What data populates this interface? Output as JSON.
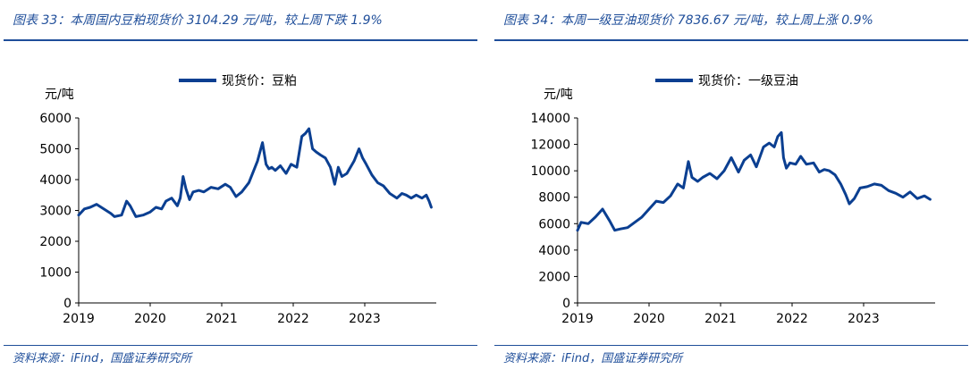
{
  "panels": [
    {
      "title": "图表 33：本周国内豆粕现货价 3104.29 元/吨，较上周下跌 1.9%",
      "source": "资料来源：iFind，国盛证券研究所",
      "chart_data": {
        "type": "line",
        "unit_label": "元/吨",
        "legend": "现货价：豆粕",
        "legend_position": "top-center",
        "grid": false,
        "xlim": [
          2019.0,
          2024.0
        ],
        "ylim": [
          0,
          6000
        ],
        "yticks": [
          0,
          1000,
          2000,
          3000,
          4000,
          5000,
          6000
        ],
        "xticks": [
          "2019",
          "2020",
          "2021",
          "2022",
          "2023"
        ],
        "color": "#0b3f91",
        "series": [
          {
            "name": "现货价：豆粕",
            "x": [
              2019.0,
              2019.08,
              2019.16,
              2019.25,
              2019.35,
              2019.45,
              2019.5,
              2019.6,
              2019.67,
              2019.72,
              2019.8,
              2019.9,
              2020.0,
              2020.08,
              2020.16,
              2020.22,
              2020.3,
              2020.38,
              2020.42,
              2020.46,
              2020.5,
              2020.55,
              2020.6,
              2020.68,
              2020.75,
              2020.85,
              2020.95,
              2021.05,
              2021.12,
              2021.2,
              2021.28,
              2021.38,
              2021.5,
              2021.57,
              2021.62,
              2021.66,
              2021.7,
              2021.75,
              2021.82,
              2021.9,
              2021.97,
              2022.05,
              2022.12,
              2022.17,
              2022.22,
              2022.27,
              2022.32,
              2022.38,
              2022.45,
              2022.52,
              2022.58,
              2022.63,
              2022.68,
              2022.75,
              2022.85,
              2022.92,
              2022.97,
              2023.02,
              2023.1,
              2023.18,
              2023.26,
              2023.35,
              2023.45,
              2023.52,
              2023.58,
              2023.65,
              2023.72,
              2023.8,
              2023.86,
              2023.9,
              2023.93
            ],
            "values": [
              2850,
              3050,
              3100,
              3200,
              3050,
              2900,
              2800,
              2850,
              3300,
              3150,
              2800,
              2850,
              2950,
              3100,
              3050,
              3300,
              3400,
              3150,
              3400,
              4100,
              3700,
              3350,
              3600,
              3650,
              3600,
              3750,
              3700,
              3850,
              3750,
              3450,
              3600,
              3900,
              4600,
              5200,
              4500,
              4350,
              4400,
              4300,
              4450,
              4200,
              4500,
              4400,
              5400,
              5500,
              5650,
              5000,
              4900,
              4800,
              4700,
              4400,
              3850,
              4400,
              4100,
              4200,
              4600,
              5000,
              4700,
              4500,
              4150,
              3900,
              3800,
              3550,
              3400,
              3550,
              3500,
              3400,
              3500,
              3400,
              3500,
              3300,
              3104
            ]
          }
        ]
      }
    },
    {
      "title": "图表 34：本周一级豆油现货价 7836.67 元/吨，较上周上涨 0.9%",
      "source": "资料来源：iFind，国盛证券研究所",
      "chart_data": {
        "type": "line",
        "unit_label": "元/吨",
        "legend": "现货价：一级豆油",
        "legend_position": "top-center",
        "grid": false,
        "xlim": [
          2019.0,
          2024.0
        ],
        "ylim": [
          0,
          14000
        ],
        "yticks": [
          0,
          2000,
          4000,
          6000,
          8000,
          10000,
          12000,
          14000
        ],
        "xticks": [
          "2019",
          "2020",
          "2021",
          "2022",
          "2023"
        ],
        "color": "#0b3f91",
        "series": [
          {
            "name": "现货价：一级豆油",
            "x": [
              2019.0,
              2019.05,
              2019.15,
              2019.25,
              2019.35,
              2019.45,
              2019.52,
              2019.6,
              2019.7,
              2019.8,
              2019.9,
              2020.0,
              2020.1,
              2020.2,
              2020.3,
              2020.4,
              2020.48,
              2020.55,
              2020.6,
              2020.68,
              2020.75,
              2020.85,
              2020.95,
              2021.05,
              2021.15,
              2021.25,
              2021.33,
              2021.42,
              2021.5,
              2021.6,
              2021.68,
              2021.75,
              2021.8,
              2021.85,
              2021.88,
              2021.92,
              2021.97,
              2022.05,
              2022.12,
              2022.2,
              2022.3,
              2022.38,
              2022.45,
              2022.52,
              2022.6,
              2022.68,
              2022.75,
              2022.8,
              2022.87,
              2022.95,
              2023.05,
              2023.15,
              2023.25,
              2023.35,
              2023.45,
              2023.55,
              2023.65,
              2023.75,
              2023.85,
              2023.93
            ],
            "values": [
              5500,
              6100,
              6000,
              6500,
              7100,
              6200,
              5500,
              5600,
              5700,
              6100,
              6500,
              7100,
              7700,
              7600,
              8100,
              9000,
              8700,
              10700,
              9500,
              9200,
              9500,
              9800,
              9400,
              10000,
              11000,
              9900,
              10800,
              11200,
              10300,
              11800,
              12100,
              11800,
              12600,
              12900,
              11000,
              10200,
              10600,
              10500,
              11100,
              10500,
              10600,
              9900,
              10100,
              10000,
              9700,
              9000,
              8200,
              7500,
              7900,
              8700,
              8800,
              9000,
              8900,
              8500,
              8300,
              8000,
              8400,
              7900,
              8100,
              7836
            ]
          }
        ]
      }
    }
  ]
}
